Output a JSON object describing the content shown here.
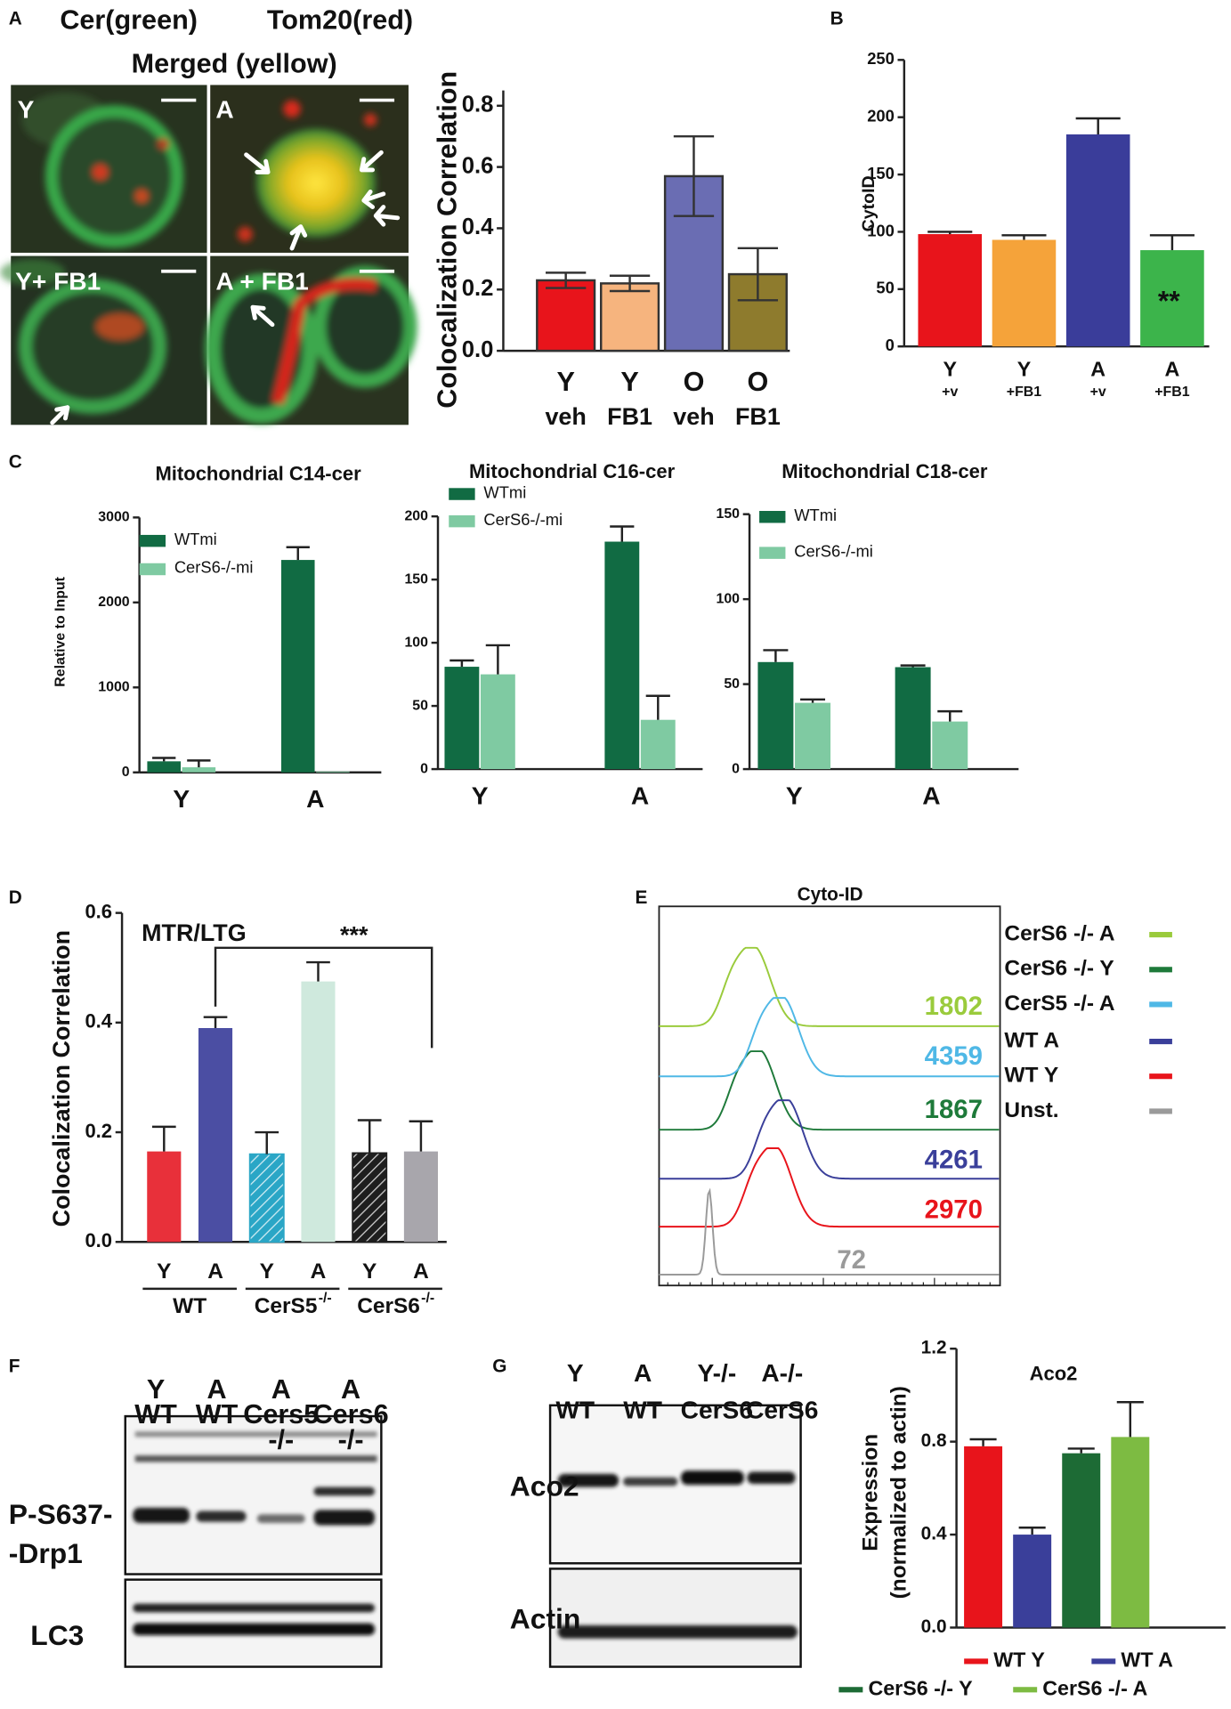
{
  "figure": {
    "panel_labels": [
      "A",
      "B",
      "C",
      "D",
      "E",
      "F",
      "G"
    ],
    "micrograph": {
      "header": [
        "Cer(green)",
        "Tom20(red)",
        "Merged (yellow)"
      ],
      "quadrants": [
        "Y",
        "A",
        "Y+ FB1",
        "A + FB1"
      ]
    },
    "blot_f": {
      "columns": [
        [
          "Y",
          "WT"
        ],
        [
          "A",
          "WT"
        ],
        [
          "A",
          "Cers5",
          "-/-"
        ],
        [
          "A",
          "Cers6",
          "-/-"
        ]
      ],
      "rows": [
        "P-S637-",
        "-Drp1",
        "LC3"
      ]
    },
    "blot_g": {
      "columns": [
        [
          "Y",
          "WT"
        ],
        [
          "A",
          "WT"
        ],
        [
          "Y-/-",
          "CerS6"
        ],
        [
          "A-/-",
          "CerS6"
        ]
      ],
      "rows": [
        "Aco2",
        "Actin"
      ]
    }
  },
  "chart_data": [
    {
      "type": "bar",
      "ylabel": "Colocalization Correlation",
      "categories": [
        "Y",
        "Y",
        "O",
        "O"
      ],
      "subcategories": [
        "veh",
        "FB1",
        "veh",
        "FB1"
      ],
      "values": [
        0.23,
        0.22,
        0.57,
        0.25
      ],
      "errors": [
        0.025,
        0.025,
        0.13,
        0.085
      ],
      "error_style": "both",
      "colors": [
        "#e8141b",
        "#f6b47e",
        "#6a6db3",
        "#8e7b2d"
      ],
      "outline": "#333333",
      "ylim": [
        0,
        0.85
      ],
      "yticks": [
        {
          "value": 0,
          "label": "0.0"
        },
        0.2,
        0.4,
        0.6,
        0.8
      ]
    },
    {
      "type": "bar",
      "ylabel": "CytoID",
      "significance": "**",
      "categories": [
        "Y",
        "Y",
        "A",
        "A"
      ],
      "subcategories": [
        "+v",
        "+FB1",
        "+v",
        "+FB1"
      ],
      "values": [
        98,
        93,
        185,
        84
      ],
      "errors": [
        2,
        4,
        14,
        13
      ],
      "error_style": "up",
      "colors": [
        "#e8141b",
        "#f5a33a",
        "#3a3d9a",
        "#3cb44b"
      ],
      "ylim": [
        0,
        250
      ],
      "yticks": [
        0,
        50,
        100,
        150,
        200,
        250
      ]
    },
    {
      "type": "bar",
      "title": "Mitochondrial C14-cer",
      "ylabel": "Relative to Input",
      "error_style": "up",
      "categories": [
        "Y",
        "A"
      ],
      "series": [
        {
          "name": "WTmi",
          "color": "#116b43",
          "values": [
            130,
            2500
          ],
          "errors": [
            40,
            150
          ]
        },
        {
          "name": "CerS6-/-mi",
          "color": "#7fcaa2",
          "values": [
            60,
            10
          ],
          "errors": [
            80,
            null
          ]
        }
      ],
      "ylim": [
        0,
        3000
      ],
      "yticks": [
        0,
        1000,
        2000,
        3000
      ]
    },
    {
      "type": "bar",
      "title": "Mitochondrial C16-cer",
      "error_style": "up",
      "categories": [
        "Y",
        "A"
      ],
      "series": [
        {
          "name": "WTmi",
          "color": "#116b43",
          "values": [
            81,
            180
          ],
          "errors": [
            5,
            12
          ]
        },
        {
          "name": "CerS6-/-mi",
          "color": "#7fcaa2",
          "values": [
            75,
            39
          ],
          "errors": [
            23,
            19
          ]
        }
      ],
      "ylim": [
        0,
        200
      ],
      "yticks": [
        0,
        50,
        100,
        150,
        200
      ]
    },
    {
      "type": "bar",
      "title": "Mitochondrial C18-cer",
      "error_style": "up",
      "categories": [
        "Y",
        "A"
      ],
      "series": [
        {
          "name": "WTmi",
          "color": "#116b43",
          "values": [
            63,
            60
          ],
          "errors": [
            7,
            1
          ]
        },
        {
          "name": "CerS6-/-mi",
          "color": "#7fcaa2",
          "values": [
            39,
            28
          ],
          "errors": [
            2,
            6
          ]
        }
      ],
      "ylim": [
        0,
        150
      ],
      "yticks": [
        0,
        50,
        100,
        150
      ]
    },
    {
      "type": "bar",
      "ylabel": "Colocalization Correlation",
      "annotation": "MTR/LTG",
      "significance": "***",
      "categories": [
        "Y",
        "A",
        "Y",
        "A",
        "Y",
        "A"
      ],
      "groups": [
        {
          "name": "WT"
        },
        {
          "name": "CerS5",
          "sup": "-/-"
        },
        {
          "name": "CerS6",
          "sup": "-/-"
        }
      ],
      "values": [
        0.165,
        0.39,
        0.16,
        0.475,
        0.162,
        0.165
      ],
      "errors": [
        0.045,
        0.02,
        0.04,
        0.035,
        0.06,
        0.055
      ],
      "error_style": "up",
      "colors": [
        "#e8303a",
        "#4b4ea3",
        "#2aa6c6",
        "#cfe9dd",
        "#1e1e1e",
        "#a8a6ac"
      ],
      "hatched": [
        false,
        false,
        true,
        false,
        true,
        false
      ],
      "ylim": [
        0,
        0.6
      ],
      "yticks": [
        {
          "value": 0,
          "label": "0.0"
        },
        0.2,
        0.4,
        0.6
      ]
    },
    {
      "type": "histogram-overlay",
      "title": "Cyto-ID",
      "series": [
        {
          "name": "CerS6 -/- A",
          "color": "#9acb3c",
          "value": 1802
        },
        {
          "name": "CerS6 -/- Y",
          "color": "#1e7a3a",
          "value": 1867
        },
        {
          "name": "CerS5 -/- A",
          "color": "#4fb8e6",
          "value": 4359
        },
        {
          "name": "WT A",
          "color": "#3a3f9a",
          "value": 4261
        },
        {
          "name": "WT Y",
          "color": "#e8141b",
          "value": 2970
        },
        {
          "name": "Unst.",
          "color": "#9a9a9a",
          "value": 72
        }
      ]
    },
    {
      "type": "bar",
      "title": "Aco2",
      "ylabel": [
        "Expression",
        "(normalized to actin)"
      ],
      "error_style": "up",
      "series": [
        {
          "name": "WT Y",
          "color": "#e8141b",
          "values": [
            0.78
          ],
          "errors": [
            0.03
          ]
        },
        {
          "name": "WT A",
          "color": "#3a3f9a",
          "values": [
            0.4
          ],
          "errors": [
            0.03
          ]
        },
        {
          "name": "CerS6 -/- Y",
          "color": "#1d6b35",
          "values": [
            0.75
          ],
          "errors": [
            0.02
          ]
        },
        {
          "name": "CerS6 -/- A",
          "color": "#7dbb42",
          "values": [
            0.82
          ],
          "errors": [
            0.15
          ]
        }
      ],
      "ylim": [
        0,
        1.2
      ],
      "yticks": [
        {
          "value": 0,
          "label": "0.0"
        },
        0.4,
        0.8,
        1.2
      ]
    }
  ]
}
